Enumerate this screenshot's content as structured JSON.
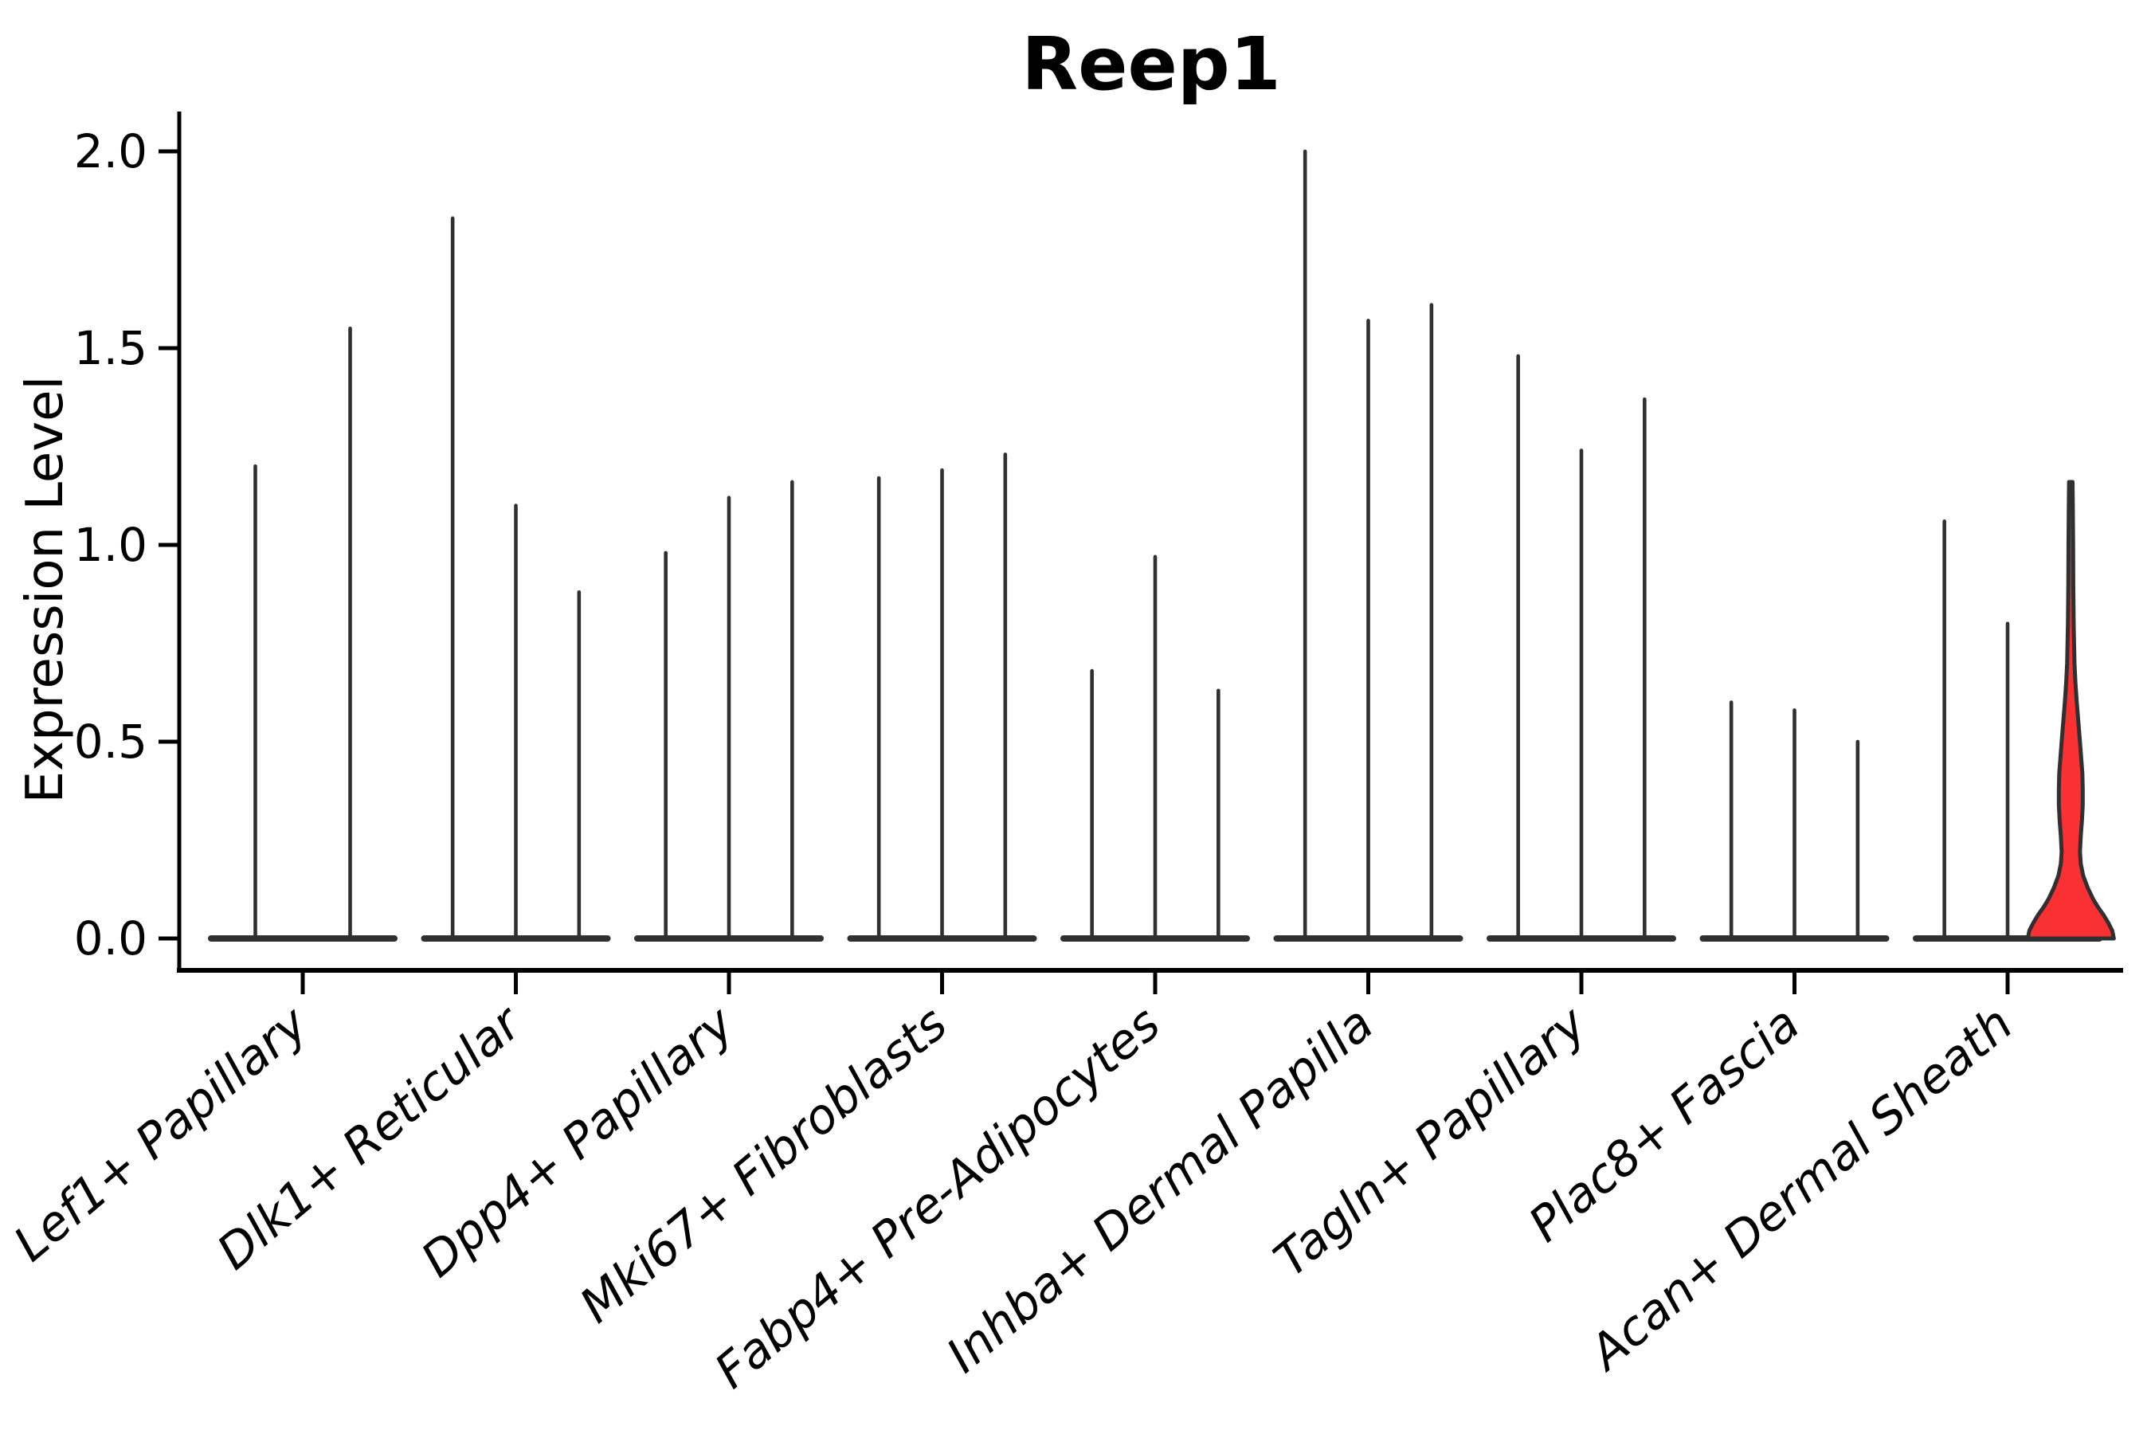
{
  "title": "Reep1",
  "axes": {
    "ylabel": "Expression Level",
    "ytick_labels": [
      "0.0",
      "0.5",
      "1.0",
      "1.5",
      "2.0"
    ],
    "ytick_values": [
      0,
      0.5,
      1.0,
      1.5,
      2.0
    ]
  },
  "chart_data": {
    "type": "violin",
    "title": "Reep1",
    "xlabel": "",
    "ylabel": "Expression Level",
    "ylim": [
      0,
      2.05
    ],
    "yticks": [
      0,
      0.5,
      1.0,
      1.5,
      2.0
    ],
    "grid": false,
    "legend_position": "none",
    "description": "Grouped single-cell expression violin plot; each category shows 2-3 near-zero-inflated violins (flat base at 0 with a thin density spike up to the max expression). Only the last violin of the last category has a visible red-filled density bulge.",
    "categories": [
      "Lef1+ Papillary",
      "Dlk1+ Reticular",
      "Dpp4+ Papillary",
      "Mki67+ Fibroblasts",
      "Fabp4+ Pre-Adipocytes",
      "Inhba+ Dermal Papilla",
      "Tagln+ Papillary",
      "Plac8+ Fascia",
      "Acan+ Dermal Sheath"
    ],
    "groups": [
      {
        "category": "Lef1+ Papillary",
        "violin_max": [
          1.2,
          1.55
        ]
      },
      {
        "category": "Dlk1+ Reticular",
        "violin_max": [
          1.83,
          1.1,
          0.88
        ]
      },
      {
        "category": "Dpp4+ Papillary",
        "violin_max": [
          0.98,
          1.12,
          1.16
        ]
      },
      {
        "category": "Mki67+ Fibroblasts",
        "violin_max": [
          1.17,
          1.19,
          1.23
        ]
      },
      {
        "category": "Fabp4+ Pre-Adipocytes",
        "violin_max": [
          0.68,
          0.97,
          0.63
        ]
      },
      {
        "category": "Inhba+ Dermal Papilla",
        "violin_max": [
          2.0,
          1.57,
          1.61
        ]
      },
      {
        "category": "Tagln+ Papillary",
        "violin_max": [
          1.48,
          1.24,
          1.37
        ]
      },
      {
        "category": "Plac8+ Fascia",
        "violin_max": [
          0.6,
          0.58,
          0.5
        ]
      },
      {
        "category": "Acan+ Dermal Sheath",
        "violin_max": [
          1.06,
          0.8,
          1.16
        ],
        "highlighted_violin": 2
      }
    ],
    "highlight": {
      "category": "Acan+ Dermal Sheath",
      "violin_index": 2,
      "max": 1.16,
      "fill": "#fa3132",
      "profile_v": [
        0,
        0.02,
        0.04,
        0.06,
        0.08,
        0.1,
        0.13,
        0.16,
        0.19,
        0.22,
        0.26,
        0.3,
        0.34,
        0.38,
        0.42,
        0.46,
        0.5,
        0.55,
        0.6,
        0.65,
        0.7,
        0.8,
        0.9,
        1.0,
        1.08,
        1.16
      ],
      "profile_halfwidth": [
        54,
        52,
        47,
        41,
        34,
        28,
        21,
        15.5,
        12.5,
        11.5,
        12.5,
        14,
        15,
        15,
        14.5,
        13,
        11.5,
        9.5,
        7.5,
        5.8,
        4.6,
        3.6,
        3.1,
        2.9,
        2.6,
        2.2
      ]
    },
    "colors": {
      "violin_stroke": "#303030",
      "highlight_fill": "#fa3132",
      "axis": "#000000",
      "background": "#ffffff"
    }
  }
}
